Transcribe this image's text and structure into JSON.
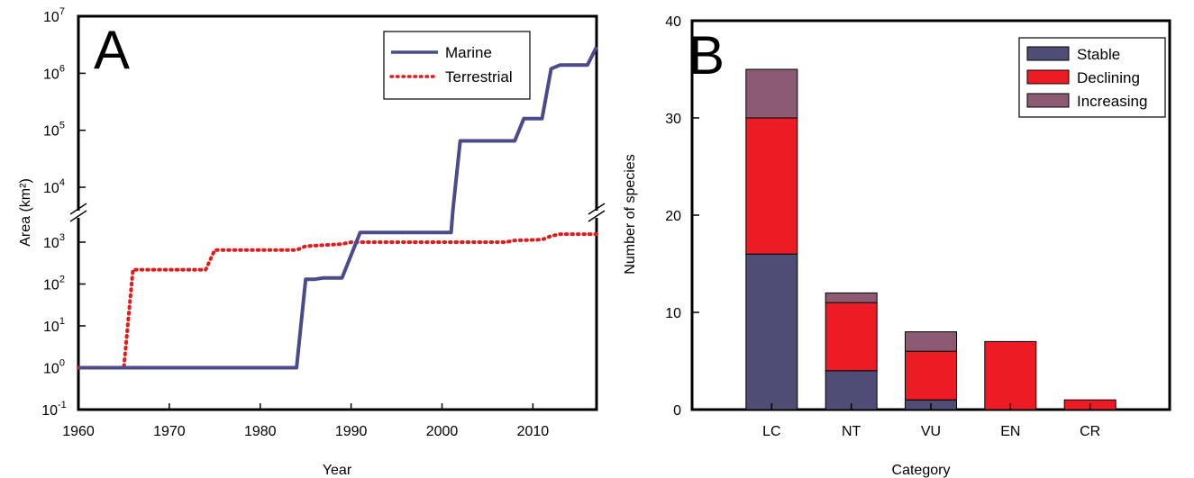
{
  "chart_data": [
    {
      "type": "line",
      "panel_label": "A",
      "xlabel": "Year",
      "ylabel": "Area (km²)",
      "xlim": [
        1960,
        2017
      ],
      "x_ticks": [
        "1960",
        "1970",
        "1980",
        "1990",
        "2000",
        "2010"
      ],
      "y_scale": "log (broken axis between 10^3 and 10^4)",
      "y_ticks": [
        {
          "base": "10",
          "exp": "-1"
        },
        {
          "base": "10",
          "exp": "0"
        },
        {
          "base": "10",
          "exp": "1"
        },
        {
          "base": "10",
          "exp": "2"
        },
        {
          "base": "10",
          "exp": "3"
        },
        {
          "base": "10",
          "exp": "4"
        },
        {
          "base": "10",
          "exp": "5"
        },
        {
          "base": "10",
          "exp": "6"
        },
        {
          "base": "10",
          "exp": "7"
        }
      ],
      "legend_position": "top-right",
      "series": [
        {
          "name": "Marine",
          "color": "#4b4b8c",
          "style": "solid",
          "points": [
            [
              1960,
              1
            ],
            [
              1984,
              1
            ],
            [
              1985,
              130
            ],
            [
              1986,
              130
            ],
            [
              1987,
              140
            ],
            [
              1989,
              140
            ],
            [
              1991,
              1700
            ],
            [
              1992,
              1700
            ],
            [
              2001,
              1700
            ],
            [
              2001.2,
              4000
            ],
            [
              2002,
              65000
            ],
            [
              2003,
              65000
            ],
            [
              2008,
              65000
            ],
            [
              2009,
              160000
            ],
            [
              2011,
              160000
            ],
            [
              2012,
              1200000
            ],
            [
              2013,
              1400000
            ],
            [
              2016,
              1400000
            ],
            [
              2017,
              2900000
            ]
          ]
        },
        {
          "name": "Terrestrial",
          "color": "#e41a1c",
          "style": "dotted",
          "points": [
            [
              1960,
              1
            ],
            [
              1965,
              1
            ],
            [
              1966,
              220
            ],
            [
              1974,
              220
            ],
            [
              1975,
              650
            ],
            [
              1984,
              650
            ],
            [
              1985,
              800
            ],
            [
              1989,
              900
            ],
            [
              1990,
              1000
            ],
            [
              2000,
              1000
            ],
            [
              2007,
              1000
            ],
            [
              2008,
              1100
            ],
            [
              2011,
              1150
            ],
            [
              2012,
              1400
            ],
            [
              2013,
              1550
            ],
            [
              2017,
              1550
            ]
          ]
        }
      ]
    },
    {
      "type": "bar",
      "stacked": true,
      "panel_label": "B",
      "xlabel": "Category",
      "ylabel": "Number of species",
      "categories": [
        "LC",
        "NT",
        "VU",
        "EN",
        "CR"
      ],
      "ylim": [
        0,
        40
      ],
      "y_ticks": [
        "0",
        "10",
        "20",
        "30",
        "40"
      ],
      "legend_position": "top-right",
      "series": [
        {
          "name": "Stable",
          "color": "#4f4c75",
          "values": [
            16,
            4,
            1,
            0,
            0
          ]
        },
        {
          "name": "Declining",
          "color": "#ed1c24",
          "values": [
            14,
            7,
            5,
            7,
            1
          ]
        },
        {
          "name": "Increasing",
          "color": "#8c5a72",
          "values": [
            5,
            1,
            2,
            0,
            0
          ]
        }
      ]
    }
  ]
}
